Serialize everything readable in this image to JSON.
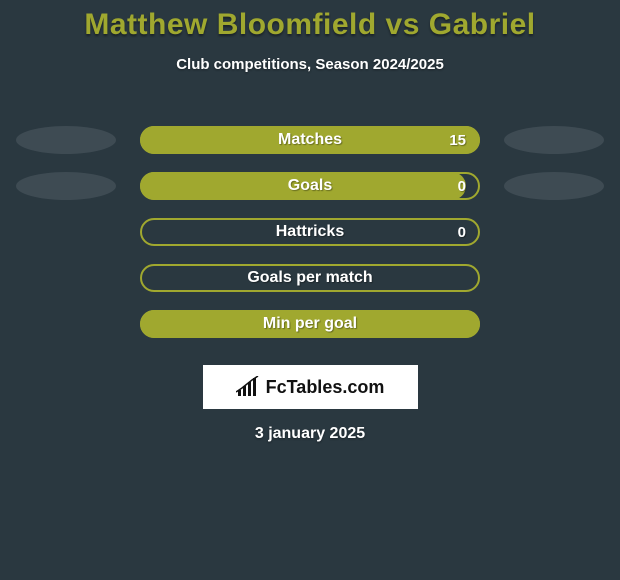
{
  "title_color": "#a0a82f",
  "background_color": "#2a3840",
  "blob_color": "#3e4b53",
  "title": "Matthew Bloomfield vs Gabriel",
  "subtitle": "Club competitions, Season 2024/2025",
  "date": "3 january 2025",
  "logo_text": "FcTables.com",
  "bars": [
    {
      "label": "Matches",
      "value": "15",
      "fill_pct": 100,
      "fill_color": "#a0a82f",
      "outline_color": "#a0a82f",
      "left_blob": true,
      "right_blob": true
    },
    {
      "label": "Goals",
      "value": "0",
      "fill_pct": 96,
      "fill_color": "#a0a82f",
      "outline_color": "#a0a82f",
      "left_blob": true,
      "right_blob": true
    },
    {
      "label": "Hattricks",
      "value": "0",
      "fill_pct": 0,
      "fill_color": "#a0a82f",
      "outline_color": "#a0a82f",
      "left_blob": false,
      "right_blob": false
    },
    {
      "label": "Goals per match",
      "value": "",
      "fill_pct": 0,
      "fill_color": "#a0a82f",
      "outline_color": "#a0a82f",
      "left_blob": false,
      "right_blob": false
    },
    {
      "label": "Min per goal",
      "value": "",
      "fill_pct": 100,
      "fill_color": "#a0a82f",
      "outline_color": "#a0a82f",
      "left_blob": false,
      "right_blob": false
    }
  ]
}
